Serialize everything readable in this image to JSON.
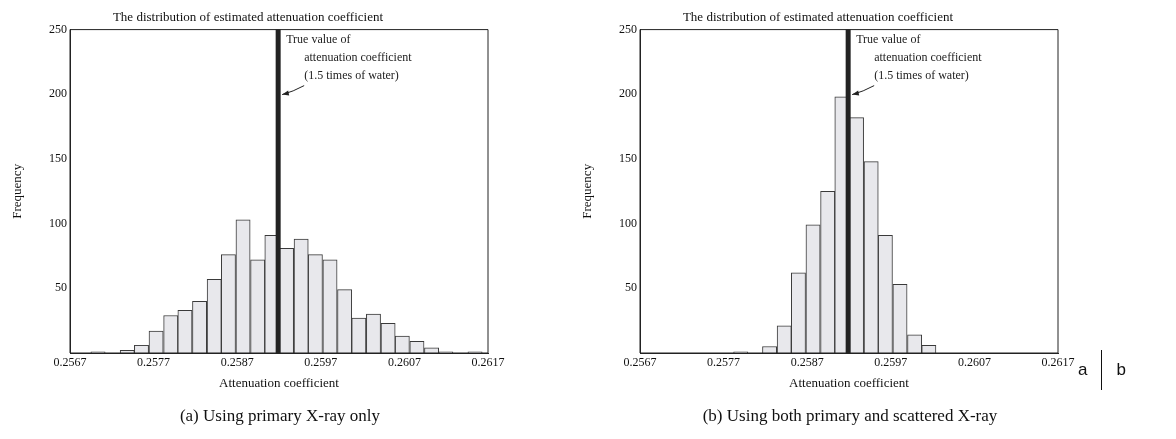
{
  "chart_data": [
    {
      "type": "histogram",
      "title": "The distribution of estimated attenuation coefficient",
      "xlabel": "Attenuation coefficient",
      "ylabel": "Frequency",
      "color": "#e8e8ec",
      "bins": [
        0.25695,
        0.25712,
        0.2573,
        0.25747,
        0.25764,
        0.25782,
        0.25799,
        0.25816,
        0.25834,
        0.25851,
        0.25868,
        0.25886,
        0.25903,
        0.2592,
        0.25938,
        0.25955,
        0.25972,
        0.2599,
        0.26007,
        0.26024,
        0.26042,
        0.26059,
        0.26076,
        0.26094,
        0.26111,
        0.26128,
        0.26146,
        0.26163
      ],
      "values": [
        1,
        0,
        2,
        6,
        17,
        29,
        33,
        40,
        57,
        76,
        103,
        72,
        91,
        81,
        88,
        76,
        72,
        49,
        27,
        30,
        23,
        13,
        9,
        4,
        1,
        0,
        1
      ],
      "xlim": [
        0.2567,
        0.2617
      ],
      "xticks": [
        0.2567,
        0.2577,
        0.2587,
        0.2597,
        0.2607,
        0.2617
      ],
      "ylim": [
        0,
        250
      ],
      "yticks": [
        50,
        100,
        150,
        200,
        250
      ],
      "grid": false,
      "ref_lines": [
        {
          "axis": "x",
          "value": 0.25919,
          "label": "True value of\nattenuation coefficient\n(1.5 times of water)",
          "color": "#222222"
        }
      ],
      "annotations": [
        "(a) Using primary X-ray only"
      ]
    },
    {
      "type": "histogram",
      "title": "The distribution of estimated attenuation coefficient",
      "xlabel": "Attenuation coefficient",
      "ylabel": "Frequency",
      "color": "#e8e8ec",
      "bins": [
        0.25782,
        0.25799,
        0.25816,
        0.25834,
        0.25851,
        0.25868,
        0.25886,
        0.25903,
        0.2592,
        0.25938,
        0.25955,
        0.25972,
        0.2599,
        0.26007,
        0.26024
      ],
      "values": [
        1,
        0,
        5,
        21,
        62,
        99,
        125,
        198,
        182,
        148,
        91,
        53,
        14,
        6
      ],
      "xlim": [
        0.2567,
        0.2617
      ],
      "xticks": [
        0.2567,
        0.2577,
        0.2587,
        0.2597,
        0.2607,
        0.2617
      ],
      "ylim": [
        0,
        250
      ],
      "yticks": [
        50,
        100,
        150,
        200,
        250
      ],
      "grid": false,
      "ref_lines": [
        {
          "axis": "x",
          "value": 0.25919,
          "label": "True value of\nattenuation coefficient\n(1.5 times of water)",
          "color": "#222222"
        }
      ],
      "annotations": [
        "(b) Using both primary and scattered X-ray",
        "a",
        "b"
      ]
    }
  ]
}
